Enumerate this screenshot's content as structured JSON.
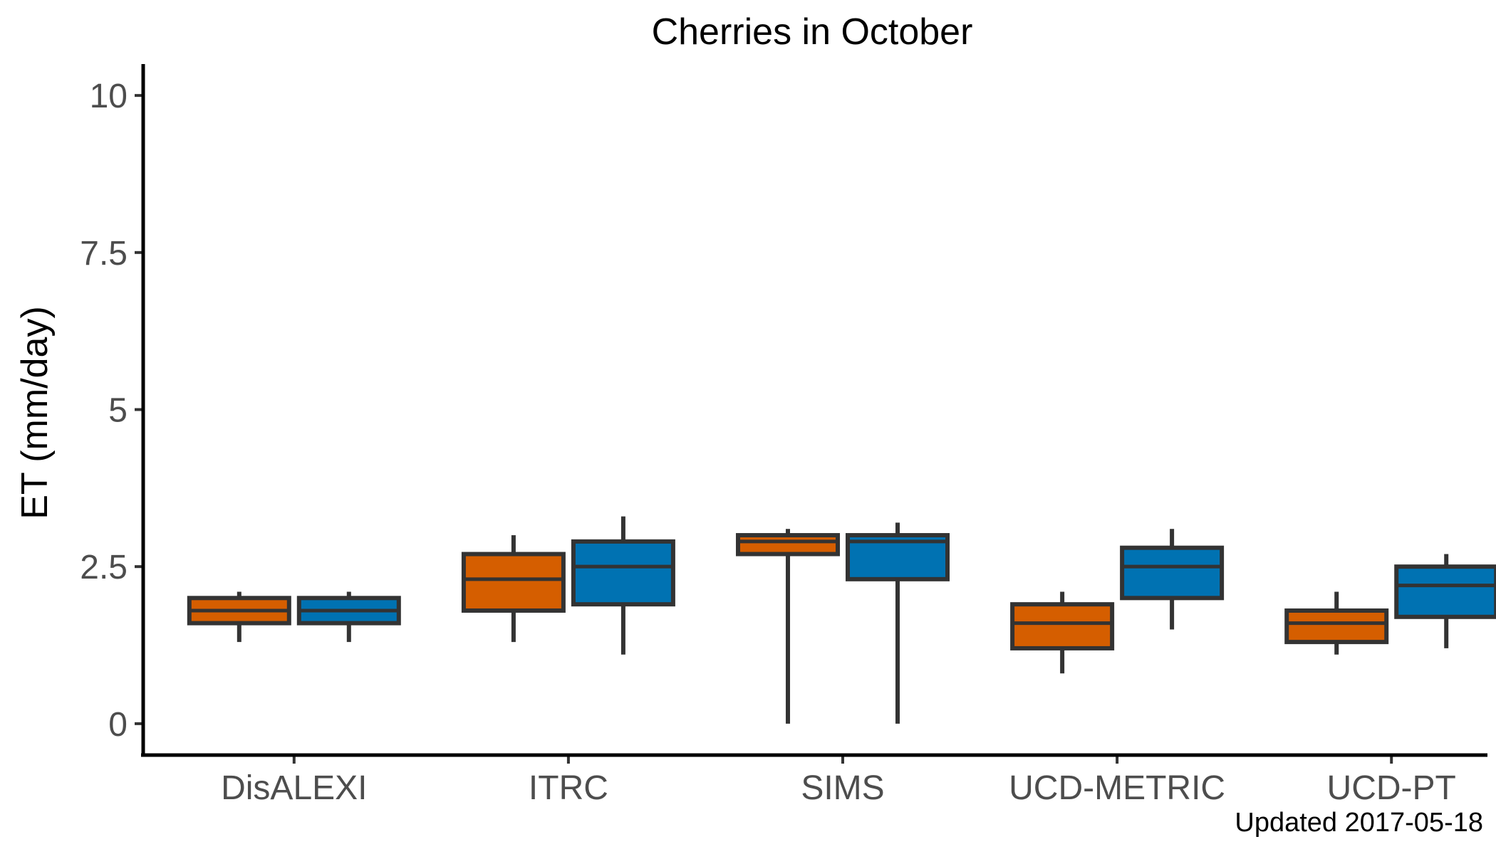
{
  "chart_data": {
    "type": "box",
    "title": "Cherries in October",
    "xlabel": "",
    "ylabel": "ET (mm/day)",
    "ylim": [
      -0.5,
      10.5
    ],
    "yticks": [
      0,
      2.5,
      5,
      7.5,
      10
    ],
    "ytick_labels": [
      "0",
      "2.5",
      "5",
      "7.5",
      "10"
    ],
    "categories": [
      "DisALEXI",
      "ITRC",
      "SIMS",
      "UCD-METRIC",
      "UCD-PT"
    ],
    "grid": false,
    "legend": "none",
    "series": [
      {
        "color": "#d55e00",
        "boxes": [
          {
            "min": 1.3,
            "q1": 1.6,
            "median": 1.8,
            "q3": 2.0,
            "max": 2.1
          },
          {
            "min": 1.3,
            "q1": 1.8,
            "median": 2.3,
            "q3": 2.7,
            "max": 3.0
          },
          {
            "min": 0.0,
            "q1": 2.7,
            "median": 2.9,
            "q3": 3.0,
            "max": 3.1
          },
          {
            "min": 0.8,
            "q1": 1.2,
            "median": 1.6,
            "q3": 1.9,
            "max": 2.1
          },
          {
            "min": 1.1,
            "q1": 1.3,
            "median": 1.6,
            "q3": 1.8,
            "max": 2.1
          }
        ]
      },
      {
        "color": "#0072b2",
        "boxes": [
          {
            "min": 1.3,
            "q1": 1.6,
            "median": 1.8,
            "q3": 2.0,
            "max": 2.1
          },
          {
            "min": 1.1,
            "q1": 1.9,
            "median": 2.5,
            "q3": 2.9,
            "max": 3.3
          },
          {
            "min": 0.0,
            "q1": 2.3,
            "median": 2.9,
            "q3": 3.0,
            "max": 3.2
          },
          {
            "min": 1.5,
            "q1": 2.0,
            "median": 2.5,
            "q3": 2.8,
            "max": 3.1
          },
          {
            "min": 1.2,
            "q1": 1.7,
            "median": 2.2,
            "q3": 2.5,
            "max": 2.7
          }
        ]
      }
    ],
    "footnote": "Updated  2017-05-18"
  }
}
